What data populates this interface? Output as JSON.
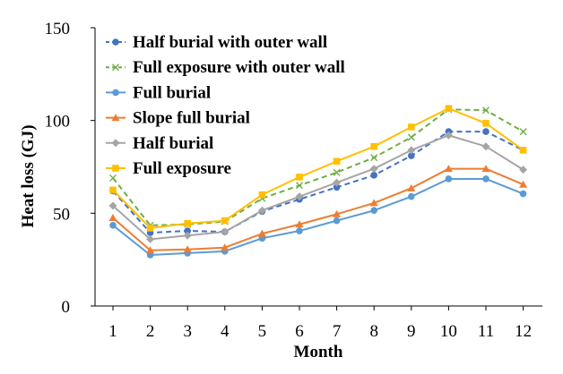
{
  "chart_data": {
    "type": "line",
    "title": "",
    "xlabel": "Month",
    "ylabel": "Heat loss (GJ)",
    "ylim": [
      0,
      150
    ],
    "yticks": [
      0,
      50,
      100,
      150
    ],
    "x": [
      1,
      2,
      3,
      4,
      5,
      6,
      7,
      8,
      9,
      10,
      11,
      12
    ],
    "x_tick_labels": [
      "1",
      "2",
      "3",
      "4",
      "5",
      "6",
      "7",
      "8",
      "9",
      "10",
      "11",
      "12"
    ],
    "y_tick_labels": [
      "0",
      "50",
      "100",
      "150"
    ],
    "grid": false,
    "legend_position": "top-left",
    "series": [
      {
        "name": "Half burial with outer wall",
        "color": "#4472C4",
        "line": "dashed",
        "marker": "circle",
        "values": [
          62,
          39.5,
          40.5,
          40,
          51,
          57.5,
          64,
          70.5,
          81,
          94,
          94,
          84
        ]
      },
      {
        "name": "Full exposure with outer wall",
        "color": "#70AD47",
        "line": "dashed",
        "marker": "x",
        "values": [
          69,
          43.5,
          44,
          45.5,
          58,
          65,
          72,
          80,
          91,
          106,
          105.5,
          94
        ]
      },
      {
        "name": "Full burial",
        "color": "#5B9BD5",
        "line": "solid",
        "marker": "circle",
        "values": [
          43.5,
          27.5,
          28.5,
          29.5,
          36.5,
          40.5,
          46,
          51.5,
          59,
          68.5,
          68.5,
          60.5
        ]
      },
      {
        "name": "Slope full burial",
        "color": "#ED7D31",
        "line": "solid",
        "marker": "triangle",
        "values": [
          47.5,
          30,
          30.5,
          31.5,
          39,
          44,
          49.5,
          55.5,
          63.5,
          74,
          74,
          65.5
        ]
      },
      {
        "name": "Half burial",
        "color": "#A5A5A5",
        "line": "solid",
        "marker": "diamond",
        "values": [
          54,
          36,
          38,
          40,
          51.5,
          59,
          66.5,
          74,
          84,
          92,
          86,
          73.5
        ]
      },
      {
        "name": "Full exposure",
        "color": "#FFC000",
        "line": "solid",
        "marker": "square",
        "values": [
          62.5,
          42,
          44.5,
          46,
          60,
          69.5,
          78,
          86,
          96.5,
          106.5,
          98.5,
          84
        ]
      }
    ]
  }
}
